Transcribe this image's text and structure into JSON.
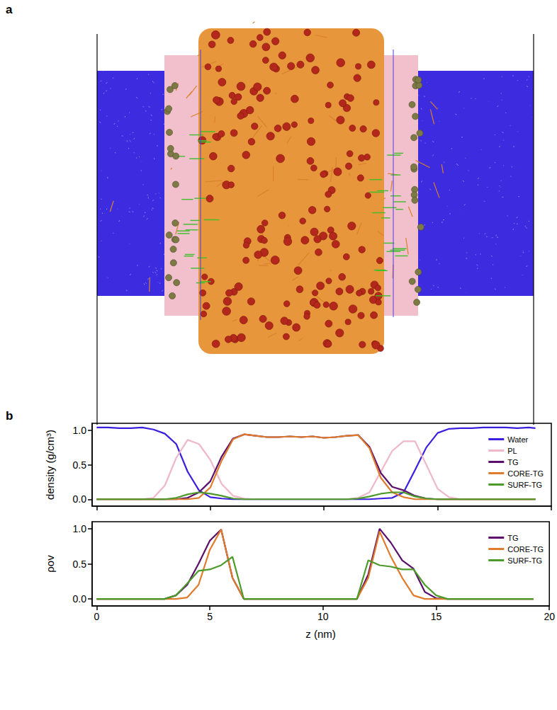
{
  "panel_labels": [
    "a",
    "b"
  ],
  "chart_data": [
    {
      "type": "line",
      "y_label": "density (g/cm³)",
      "tick_labels": "y",
      "legend": "upper right",
      "xlim": [
        -0.2,
        20
      ],
      "xticks": [
        0,
        5,
        10,
        15,
        20
      ],
      "ylim": [
        -0.1,
        1.1
      ],
      "yticks": [
        {
          "value": 0,
          "label": "0.0"
        },
        {
          "value": 0.5,
          "label": "0.5"
        },
        {
          "value": 1,
          "label": "1.0"
        }
      ],
      "x": [
        0,
        0.5,
        1,
        1.5,
        2,
        2.5,
        3,
        3.5,
        4,
        4.5,
        5,
        5.5,
        6,
        6.5,
        7,
        7.5,
        8,
        8.5,
        9,
        9.5,
        10,
        10.5,
        11,
        11.5,
        12,
        12.5,
        13,
        13.5,
        14,
        14.5,
        15,
        15.5,
        16,
        16.5,
        17,
        17.5,
        18,
        18.5,
        19,
        19.3
      ],
      "series": [
        {
          "name": "Water",
          "color": "#3a1fe0",
          "values": [
            1.04,
            1.04,
            1.03,
            1.03,
            1.04,
            1.01,
            0.95,
            0.8,
            0.4,
            0.13,
            0.03,
            0.01,
            0,
            0,
            0,
            0,
            0,
            0,
            0,
            0,
            0,
            0,
            0,
            0,
            0,
            0.01,
            0.02,
            0.1,
            0.42,
            0.75,
            0.96,
            1.02,
            1.03,
            1.03,
            1.04,
            1.04,
            1.04,
            1.03,
            1.04,
            1.03
          ]
        },
        {
          "name": "PL",
          "color": "#f0b7c9",
          "values": [
            0,
            0,
            0,
            0,
            0,
            0.02,
            0.2,
            0.6,
            0.86,
            0.8,
            0.57,
            0.22,
            0.05,
            0.01,
            0,
            0,
            0,
            0,
            0,
            0,
            0,
            0,
            0,
            0.02,
            0.1,
            0.4,
            0.7,
            0.84,
            0.84,
            0.5,
            0.15,
            0.03,
            0,
            0,
            0,
            0,
            0,
            0,
            0,
            0
          ]
        },
        {
          "name": "TG",
          "color": "#5b0f6b",
          "values": [
            0,
            0,
            0,
            0,
            0,
            0,
            0,
            0,
            0.02,
            0.1,
            0.26,
            0.62,
            0.88,
            0.94,
            0.92,
            0.9,
            0.9,
            0.91,
            0.9,
            0.91,
            0.89,
            0.9,
            0.92,
            0.93,
            0.76,
            0.38,
            0.18,
            0.13,
            0.05,
            0.01,
            0,
            0,
            0,
            0,
            0,
            0,
            0,
            0,
            0,
            0
          ]
        },
        {
          "name": "CORE-TG",
          "color": "#e07b2c",
          "values": [
            0,
            0,
            0,
            0,
            0,
            0,
            0,
            0,
            0,
            0.02,
            0.17,
            0.56,
            0.87,
            0.94,
            0.92,
            0.9,
            0.9,
            0.91,
            0.9,
            0.91,
            0.89,
            0.9,
            0.92,
            0.93,
            0.74,
            0.31,
            0.1,
            0.03,
            0,
            0,
            0,
            0,
            0,
            0,
            0,
            0,
            0,
            0,
            0,
            0
          ]
        },
        {
          "name": "SURF-TG",
          "color": "#4c9a2a",
          "values": [
            0,
            0,
            0,
            0,
            0,
            0,
            0,
            0.02,
            0.07,
            0.1,
            0.08,
            0.05,
            0.01,
            0,
            0,
            0,
            0,
            0,
            0,
            0,
            0,
            0,
            0,
            0.01,
            0.04,
            0.08,
            0.1,
            0.1,
            0.04,
            0.01,
            0,
            0,
            0,
            0,
            0,
            0,
            0,
            0,
            0,
            0
          ]
        }
      ]
    },
    {
      "type": "line",
      "y_label": "ρov",
      "x_label": "z (nm)",
      "legend": "upper right",
      "xlim": [
        -0.2,
        20
      ],
      "xticks": [
        0,
        5,
        10,
        15,
        20
      ],
      "ylim": [
        -0.1,
        1.1
      ],
      "yticks": [
        {
          "value": 0,
          "label": "0.0"
        },
        {
          "value": 0.5,
          "label": "0.5"
        },
        {
          "value": 1,
          "label": "1.0"
        }
      ],
      "x": [
        0,
        0.5,
        1,
        1.5,
        2,
        2.5,
        3,
        3.5,
        4,
        4.5,
        5,
        5.5,
        6,
        6.5,
        7,
        7.5,
        8,
        8.5,
        9,
        9.5,
        10,
        10.5,
        11,
        11.5,
        12,
        12.5,
        13,
        13.5,
        14,
        14.5,
        15,
        15.5,
        16,
        16.5,
        17,
        17.5,
        18,
        18.5,
        19,
        19.3
      ],
      "series": [
        {
          "name": "TG",
          "color": "#5b0f6b",
          "values": [
            0,
            0,
            0,
            0,
            0,
            0,
            0,
            0.05,
            0.2,
            0.5,
            0.83,
            0.99,
            0.3,
            0,
            0,
            0,
            0,
            0,
            0,
            0,
            0,
            0,
            0,
            0,
            0.35,
            1.0,
            0.8,
            0.55,
            0.43,
            0.1,
            0.01,
            0,
            0,
            0,
            0,
            0,
            0,
            0,
            0,
            0
          ]
        },
        {
          "name": "CORE-TG",
          "color": "#e07b2c",
          "values": [
            0,
            0,
            0,
            0,
            0,
            0,
            0,
            0,
            0.02,
            0.2,
            0.7,
            0.99,
            0.3,
            0,
            0,
            0,
            0,
            0,
            0,
            0,
            0,
            0,
            0,
            0,
            0.3,
            0.96,
            0.6,
            0.3,
            0.05,
            0,
            0,
            0,
            0,
            0,
            0,
            0,
            0,
            0,
            0,
            0
          ]
        },
        {
          "name": "SURF-TG",
          "color": "#4c9a2a",
          "values": [
            0,
            0,
            0,
            0,
            0,
            0,
            0,
            0.05,
            0.22,
            0.4,
            0.42,
            0.48,
            0.6,
            0,
            0,
            0,
            0,
            0,
            0,
            0,
            0,
            0,
            0,
            0,
            0.55,
            0.48,
            0.46,
            0.42,
            0.42,
            0.2,
            0.05,
            0,
            0,
            0,
            0,
            0,
            0,
            0,
            0,
            0
          ]
        }
      ]
    }
  ]
}
